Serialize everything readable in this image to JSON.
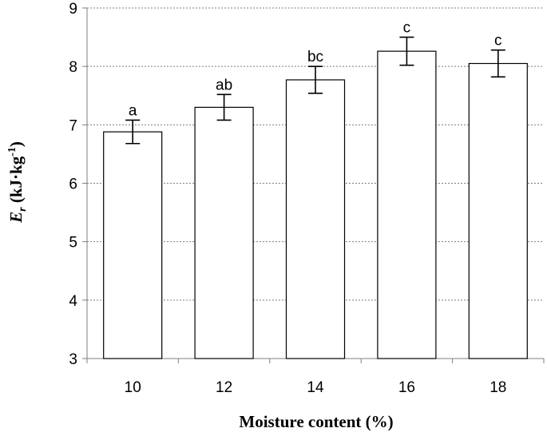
{
  "chart_data": {
    "type": "bar",
    "categories": [
      "10",
      "12",
      "14",
      "16",
      "18"
    ],
    "values": [
      6.88,
      7.3,
      7.77,
      8.26,
      8.05
    ],
    "errors": [
      0.2,
      0.22,
      0.23,
      0.24,
      0.23
    ],
    "significance_labels": [
      "a",
      "ab",
      "bc",
      "c",
      "c"
    ],
    "xlabel": "Moisture content (%)",
    "ylabel": {
      "symbol": "E",
      "subscript": "r",
      "unit": " (kJ·kg",
      "superscript": "-1",
      "close": ")"
    },
    "ylim": [
      3,
      9
    ],
    "yticks": [
      "3",
      "4",
      "5",
      "6",
      "7",
      "8",
      "9"
    ],
    "grid": true,
    "bar_fill": "#ffffff",
    "bar_edge": "#000000",
    "grid_color": "#7f7f7f"
  }
}
